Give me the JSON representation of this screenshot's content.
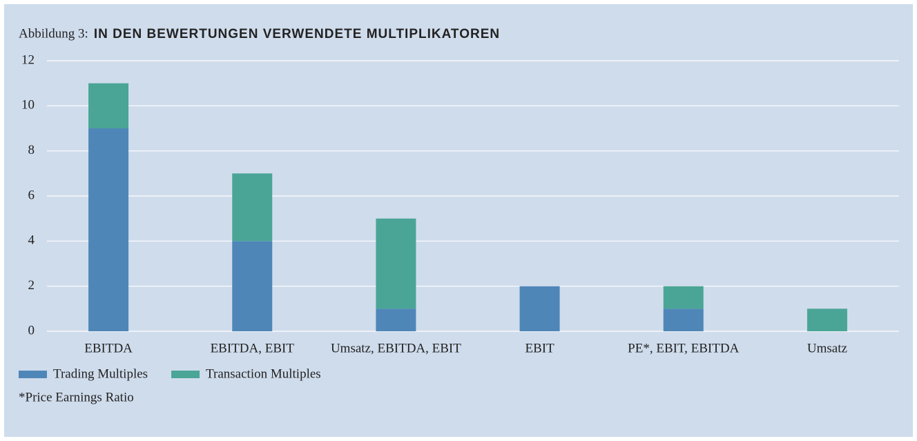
{
  "chart_data": {
    "type": "stacked_bar",
    "title_prefix": "Abbildung 3:",
    "title": "IN DEN BEWERTUNGEN VERWENDETE MULTIPLIKATOREN",
    "categories": [
      "EBITDA",
      "EBITDA, EBIT",
      "Umsatz, EBITDA, EBIT",
      "EBIT",
      "PE*, EBIT, EBITDA",
      "Umsatz"
    ],
    "series": [
      {
        "name": "Trading Multiples",
        "color": "#4f86b8",
        "values": [
          9,
          4,
          1,
          2,
          1,
          0
        ]
      },
      {
        "name": "Transaction Multiples",
        "color": "#4aa596",
        "values": [
          2,
          3,
          4,
          0,
          1,
          1
        ]
      }
    ],
    "ylim": [
      0,
      12
    ],
    "yticks": [
      0,
      2,
      4,
      6,
      8,
      10,
      12
    ],
    "grid": true,
    "footnote": "*Price Earnings Ratio"
  }
}
